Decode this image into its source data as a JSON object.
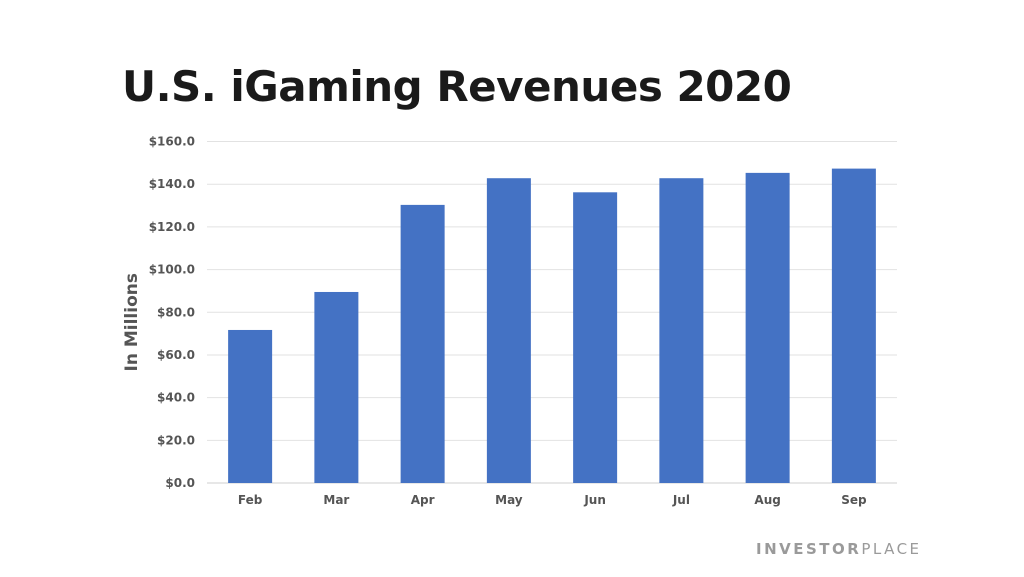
{
  "chart_data": {
    "type": "bar",
    "title": "U.S. iGaming Revenues 2020",
    "xlabel": "",
    "ylabel": "In Millions",
    "categories": [
      "Feb",
      "Mar",
      "Apr",
      "May",
      "Jun",
      "Jul",
      "Aug",
      "Sep"
    ],
    "values": [
      71.7,
      89.5,
      130.3,
      142.8,
      136.2,
      142.8,
      145.3,
      147.3
    ],
    "ylim": [
      0,
      160
    ],
    "yticks": [
      0,
      20,
      40,
      60,
      80,
      100,
      120,
      140,
      160
    ],
    "ytick_labels": [
      "$0.0",
      "$20.0",
      "$40.0",
      "$60.0",
      "$80.0",
      "$100.0",
      "$120.0",
      "$140.0",
      "$160.0"
    ],
    "grid": true,
    "bar_color": "#4472C4"
  },
  "branding": {
    "logo_bold": "INVESTOR",
    "logo_light": "PLACE"
  }
}
